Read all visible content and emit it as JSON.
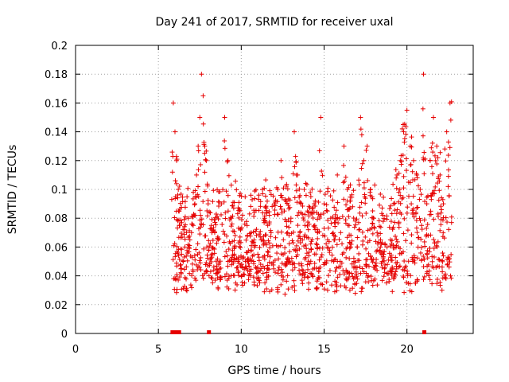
{
  "chart_data": {
    "type": "scatter",
    "title": "Day 241 of 2017, SRMTID for receiver uxal",
    "xlabel": "GPS time / hours",
    "ylabel": "SRMTID / TECUs",
    "xlim": [
      0,
      24
    ],
    "ylim": [
      0,
      0.2
    ],
    "x_ticks": [
      "0",
      "5",
      "10",
      "15",
      "20"
    ],
    "x_tick_values": [
      0,
      5,
      10,
      15,
      20
    ],
    "y_ticks": [
      "0",
      "0.02",
      "0.04",
      "0.06",
      "0.08",
      "0.1",
      "0.12",
      "0.14",
      "0.16",
      "0.18",
      "0.2"
    ],
    "y_tick_values": [
      0,
      0.02,
      0.04,
      0.06,
      0.08,
      0.1,
      0.12,
      0.14,
      0.16,
      0.18,
      0.2
    ],
    "grid": true,
    "marker": "plus",
    "color": "#e60000",
    "data_coverage_hours": [
      5.8,
      22.7
    ],
    "missing_data_markers_x": [
      5.85,
      6.05,
      6.25,
      8.05,
      21.05
    ],
    "series": [
      {
        "x": [
          5.9,
          6.0,
          6.1,
          6.2,
          6.3,
          6.4,
          6.5,
          6.6,
          6.7,
          6.8,
          6.9,
          7.0,
          7.1,
          7.2,
          7.3,
          7.4,
          7.5,
          7.6,
          7.7,
          7.8,
          7.9,
          8.0,
          8.2,
          8.4,
          8.6,
          8.8,
          9.0,
          9.2,
          9.4,
          9.6,
          9.8,
          10.0,
          10.2,
          10.4,
          10.6,
          10.8,
          11.0,
          11.2,
          11.4,
          11.6,
          11.8,
          12.0,
          12.2,
          12.4,
          12.6,
          12.8,
          13.0,
          13.2,
          13.4,
          13.6,
          13.8,
          14.0,
          14.2,
          14.4,
          14.6,
          14.8,
          15.0,
          15.2,
          15.4,
          15.6,
          15.8,
          16.0,
          16.2,
          16.4,
          16.6,
          16.8,
          17.0,
          17.2,
          17.4,
          17.6,
          17.8,
          18.0,
          18.2,
          18.4,
          18.6,
          18.8,
          19.0,
          19.2,
          19.4,
          19.6,
          19.8,
          20.0,
          20.2,
          20.4,
          20.6,
          20.8,
          21.0,
          21.2,
          21.4,
          21.6,
          21.8,
          22.0,
          22.2,
          22.4,
          22.6
        ],
        "y": [
          0.16,
          0.14,
          0.12,
          0.1,
          0.075,
          0.055,
          0.05,
          0.06,
          0.07,
          0.08,
          0.065,
          0.07,
          0.075,
          0.09,
          0.11,
          0.13,
          0.15,
          0.18,
          0.165,
          0.13,
          0.12,
          0.09,
          0.075,
          0.07,
          0.065,
          0.09,
          0.15,
          0.12,
          0.08,
          0.06,
          0.05,
          0.04,
          0.035,
          0.05,
          0.07,
          0.06,
          0.055,
          0.065,
          0.08,
          0.075,
          0.07,
          0.09,
          0.1,
          0.12,
          0.085,
          0.07,
          0.08,
          0.14,
          0.11,
          0.09,
          0.1,
          0.085,
          0.095,
          0.09,
          0.07,
          0.15,
          0.09,
          0.085,
          0.08,
          0.065,
          0.11,
          0.07,
          0.13,
          0.1,
          0.06,
          0.05,
          0.06,
          0.15,
          0.12,
          0.13,
          0.1,
          0.08,
          0.07,
          0.06,
          0.055,
          0.06,
          0.065,
          0.09,
          0.11,
          0.12,
          0.14,
          0.155,
          0.13,
          0.12,
          0.11,
          0.1,
          0.18,
          0.09,
          0.12,
          0.15,
          0.13,
          0.11,
          0.09,
          0.14,
          0.16
        ]
      }
    ]
  }
}
